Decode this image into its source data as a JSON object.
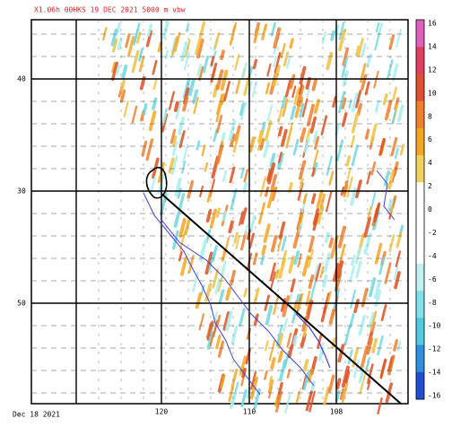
{
  "header": {
    "title": "X1.06h  00HKS 19 DEC 2021  5000 m      vbw"
  },
  "map": {
    "lat_labels": [
      "40",
      "30",
      "50"
    ],
    "lon_labels": [
      "120",
      "110",
      "108"
    ],
    "footer": "Dec 18 2021"
  },
  "colorbar": {
    "labels": [
      "16",
      "14",
      "12",
      "10",
      "8",
      "6",
      "4",
      "2",
      "0",
      "-2",
      "-4",
      "-6",
      "-8",
      "-10",
      "-12",
      "-14",
      "-16"
    ]
  }
}
